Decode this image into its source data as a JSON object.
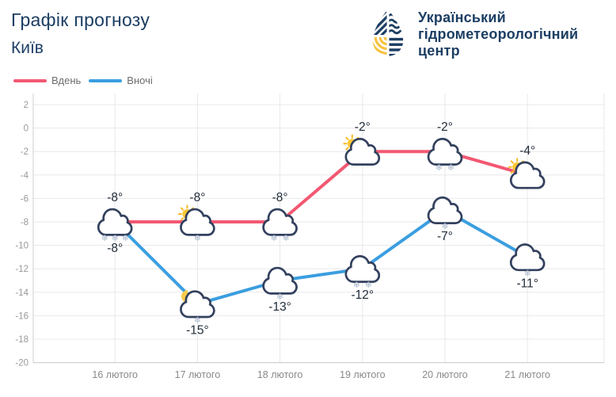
{
  "header": {
    "title_line1": "Графік прогнозу",
    "title_line2": "Київ",
    "logo": {
      "org_line1": "Український",
      "org_line2": "гідрометеорологічний",
      "org_line3": "центр"
    }
  },
  "colors": {
    "brand_navy": "#1c3e63",
    "logo_yellow": "#f6c344"
  },
  "legend": [
    {
      "label": "Вдень",
      "color": "#f25872"
    },
    {
      "label": "Вночі",
      "color": "#3b9ee0"
    }
  ],
  "chart_data": {
    "type": "line",
    "title": "Графік прогнозу Київ",
    "categories": [
      "16 лютого",
      "17 лютого",
      "18 лютого",
      "19 лютого",
      "20 лютого",
      "21 лютого"
    ],
    "series": [
      {
        "name": "Вдень",
        "color": "#f25872",
        "values": [
          -8,
          -8,
          -8,
          -2,
          -2,
          -4
        ],
        "labels": [
          "-8°",
          "-8°",
          "-8°",
          "-2°",
          "-2°",
          "-4°"
        ],
        "icons": [
          "cloud-snow-3",
          "sun-cloud-snow-1",
          "cloud-snow-2",
          "sun-cloud",
          "cloud-snow-2",
          "sun-cloud"
        ],
        "label_position": "above"
      },
      {
        "name": "Вночі",
        "color": "#3b9ee0",
        "values": [
          -8,
          -15,
          -13,
          -12,
          -7,
          -11
        ],
        "labels": [
          "-8°",
          "-15°",
          "-13°",
          "-12°",
          "-7°",
          "-11°"
        ],
        "icons": [
          null,
          "moon-cloud-snow-1",
          "cloud-snow-1",
          "cloud-snow-2",
          "cloud-snow-1",
          "cloud-snow-1"
        ],
        "label_position": "below"
      }
    ],
    "y_axis": {
      "min": -20,
      "max": 2,
      "step": 2,
      "ticks": [
        2,
        0,
        -2,
        -4,
        -6,
        -8,
        -10,
        -12,
        -14,
        -16,
        -18,
        -20
      ]
    },
    "xlabel": "",
    "ylabel": "",
    "grid": true,
    "legend_position": "top-left",
    "axis_style": {
      "grid_color": "#e8e8e8",
      "axis_color": "#cccccc",
      "tick_label_color": "#999999",
      "x_label_color": "#8a8a8a",
      "temp_label_color": "#1f2a38"
    },
    "icon_colors": {
      "cloud": "#33415e",
      "sun": "#fdc835",
      "sun_ray": "#f7b825",
      "moon": "#f7cd4b",
      "snow": "#a8b6ca"
    }
  }
}
